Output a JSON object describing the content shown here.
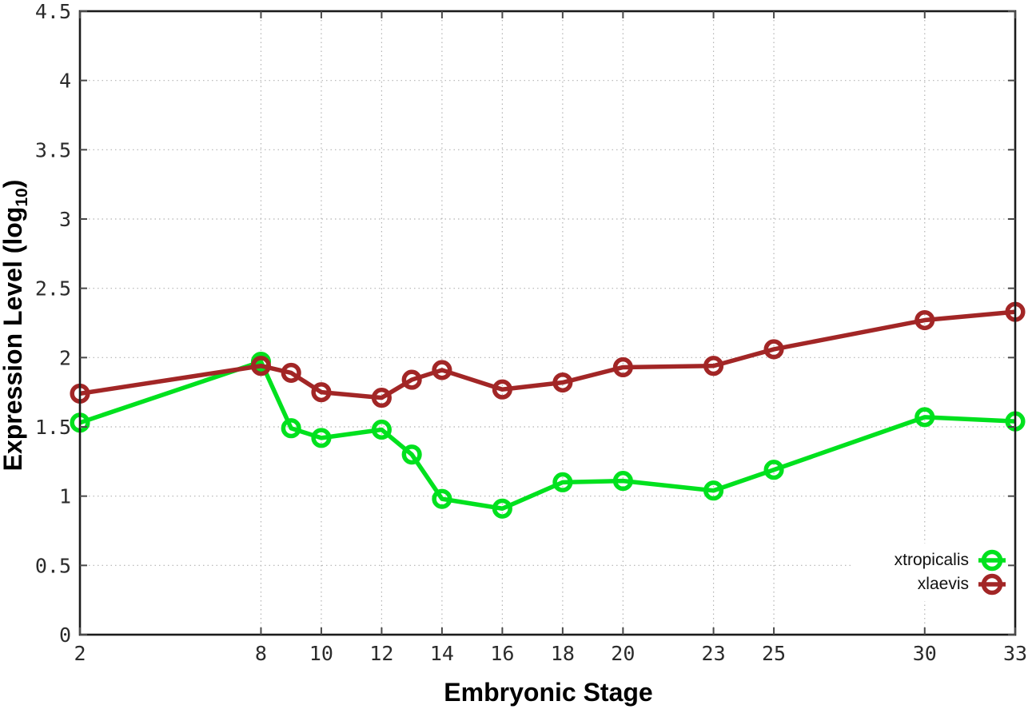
{
  "chart_data": {
    "type": "line",
    "title": "",
    "xlabel": "Embryonic Stage",
    "ylabel": {
      "base": "Expression Level (log",
      "subscript": "10",
      "close": ")"
    },
    "xlim": [
      2,
      33
    ],
    "ylim": [
      0,
      4.5
    ],
    "grid": true,
    "legend_position": "inside-bottom-right",
    "marker": "open-circle",
    "x": [
      2,
      8,
      9,
      10,
      12,
      13,
      14,
      16,
      18,
      20,
      23,
      25,
      30,
      33
    ],
    "xtick_values": [
      2,
      8,
      10,
      12,
      14,
      16,
      18,
      20,
      23,
      25,
      30,
      33
    ],
    "xtick_labels": [
      "2",
      "8",
      "10",
      "12",
      "14",
      "16",
      "18",
      "20",
      "23",
      "25",
      "30",
      "33"
    ],
    "ytick_values": [
      0,
      0.5,
      1,
      1.5,
      2,
      2.5,
      3,
      3.5,
      4,
      4.5
    ],
    "ytick_labels": [
      "0",
      "0.5",
      "1",
      "1.5",
      "2",
      "2.5",
      "3",
      "3.5",
      "4",
      "4.5"
    ],
    "series": [
      {
        "name": "xtropicalis",
        "color": "#00e11e",
        "values": [
          1.53,
          1.97,
          1.49,
          1.42,
          1.48,
          1.3,
          0.98,
          0.91,
          1.1,
          1.11,
          1.04,
          1.19,
          1.57,
          1.54
        ]
      },
      {
        "name": "xlaevis",
        "color": "#a22626",
        "values": [
          1.74,
          1.94,
          1.89,
          1.75,
          1.71,
          1.84,
          1.91,
          1.77,
          1.82,
          1.93,
          1.94,
          2.06,
          2.27,
          2.33
        ]
      }
    ]
  },
  "colors": {
    "background": "#ffffff",
    "plot_border": "#1b1b1b",
    "grid": "#b3b3b3",
    "tick_mark": "#4a4a4a",
    "tick_text": "#2b2b2b"
  }
}
